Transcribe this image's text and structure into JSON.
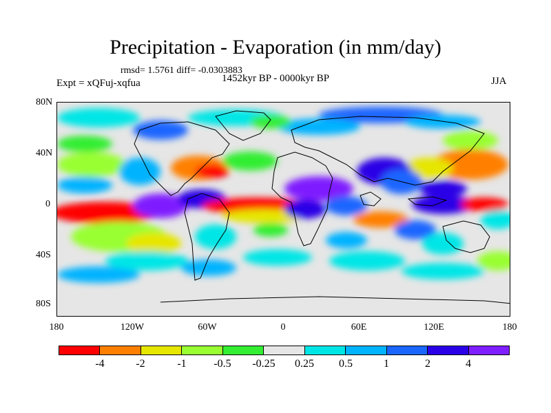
{
  "title": "Precipitation - Evaporation (in mm/day)",
  "stats": "rmsd= 1.5761 diff= -0.0303883",
  "experiment": "Expt = xQFuj-xqfua",
  "period": "1452kyr BP - 0000kyr BP",
  "season": "JJA",
  "y_ticks": [
    "80N",
    "40N",
    "0",
    "40S",
    "80S"
  ],
  "x_ticks": [
    "180",
    "120W",
    "60W",
    "0",
    "60E",
    "120E",
    "180"
  ],
  "colorbar": {
    "colors": [
      "#ff0000",
      "#ff8000",
      "#e6e600",
      "#99ff33",
      "#33ee33",
      "#e6e6e6",
      "#00e6e6",
      "#00b3ff",
      "#1a66ff",
      "#2a00e6",
      "#7f1fff"
    ],
    "labels": [
      "-4",
      "-2",
      "-1",
      "-0.5",
      "-0.25",
      "0.25",
      "0.5",
      "1",
      "2",
      "4"
    ]
  },
  "palette": {
    "land_gray": "#e6e6e6",
    "coast": "#000000"
  }
}
